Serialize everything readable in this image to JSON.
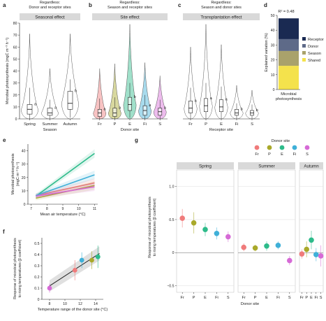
{
  "colors": {
    "ink": "#222222",
    "grid": "#dddddd",
    "strip": "#d9d9d9",
    "fr": "#f07b7b",
    "p": "#a9a92a",
    "e": "#2dbb8a",
    "fi": "#3fb0d8",
    "s": "#d66ad6",
    "receptor": "#1a2a52",
    "donor": "#5e6a88",
    "season": "#a9a26b",
    "shared": "#f4e24c"
  },
  "chart_data": [
    {
      "panel": "a",
      "type": "box",
      "top_label_1": "Regardless:",
      "top_label_2": "Donor and receptor sites",
      "strip": "Seasonal effect",
      "ylabel": "Microbial photosynthesis (mgC m⁻³ h⁻¹)",
      "xlabel": "Season",
      "ylim": [
        0,
        80
      ],
      "yticks": [
        0,
        10,
        20,
        30,
        40,
        50,
        60,
        70,
        80
      ],
      "categories": [
        "Spring",
        "Summer",
        "Autumn"
      ],
      "boxes": [
        {
          "q1": 4,
          "median": 8,
          "q3": 12,
          "wlo": 0,
          "whi": 26,
          "max": 71
        },
        {
          "q1": 3,
          "median": 5,
          "q3": 9,
          "wlo": 0,
          "whi": 16,
          "max": 42
        },
        {
          "q1": 8,
          "median": 13,
          "q3": 23,
          "wlo": 1,
          "whi": 33,
          "max": 71
        }
      ],
      "letters": [
        "a",
        "a",
        "b"
      ]
    },
    {
      "panel": "b",
      "type": "box",
      "top_label_1": "Regardless:",
      "top_label_2": "Season and receptor sites",
      "strip": "Site effect",
      "xlabel": "Donor site",
      "ylim": [
        0,
        80
      ],
      "categories": [
        "Fr",
        "P",
        "E",
        "Fi",
        "S"
      ],
      "boxes": [
        {
          "q1": 2,
          "median": 5,
          "q3": 8,
          "wlo": 0,
          "whi": 17,
          "max": 42
        },
        {
          "q1": 2,
          "median": 5,
          "q3": 9,
          "wlo": 0,
          "whi": 18,
          "max": 46
        },
        {
          "q1": 7,
          "median": 12,
          "q3": 18,
          "wlo": 1,
          "whi": 30,
          "max": 79
        },
        {
          "q1": 3,
          "median": 7,
          "q3": 11,
          "wlo": 0,
          "whi": 20,
          "max": 47
        },
        {
          "q1": 3,
          "median": 6,
          "q3": 9,
          "wlo": 0,
          "whi": 16,
          "max": 36
        }
      ],
      "letters": [
        "a",
        "a",
        "b",
        "a",
        "a"
      ]
    },
    {
      "panel": "c",
      "type": "box",
      "top_label_1": "Regardless:",
      "top_label_2": "Season and donor sites",
      "strip": "Transplantation effect",
      "xlabel": "Receptor site",
      "ylim": [
        0,
        80
      ],
      "categories": [
        "Fr",
        "P",
        "E",
        "Fi",
        "S"
      ],
      "boxes": [
        {
          "q1": 5,
          "median": 9,
          "q3": 15,
          "wlo": 0,
          "whi": 26,
          "max": 60
        },
        {
          "q1": 6,
          "median": 11,
          "q3": 17,
          "wlo": 0,
          "whi": 30,
          "max": 79
        },
        {
          "q1": 6,
          "median": 10,
          "q3": 16,
          "wlo": 0,
          "whi": 27,
          "max": 62
        },
        {
          "q1": 3,
          "median": 5,
          "q3": 8,
          "wlo": 0,
          "whi": 13,
          "max": 28
        },
        {
          "q1": 3,
          "median": 5,
          "q3": 7,
          "wlo": 0,
          "whi": 12,
          "max": 24
        }
      ],
      "letters": [
        "a",
        "a",
        "a",
        "b",
        "b"
      ]
    },
    {
      "panel": "d",
      "type": "bar",
      "stacked": true,
      "annotation": "R² = 0.48",
      "ylabel": "Explained variation (%)",
      "xlabel": "Microbial photosynthesis",
      "ylim": [
        0,
        50
      ],
      "yticks": [
        0,
        10,
        20,
        30,
        40,
        50
      ],
      "series": [
        {
          "name": "Shared",
          "values": [
            16
          ]
        },
        {
          "name": "Season",
          "values": [
            10
          ]
        },
        {
          "name": "Donor",
          "values": [
            8
          ]
        },
        {
          "name": "Receptor",
          "values": [
            14
          ]
        }
      ],
      "legend_order": [
        "Receptor",
        "Donor",
        "Season",
        "Shared"
      ]
    },
    {
      "panel": "e",
      "type": "line",
      "ylabel": "Microbial photosynthesis (mgC m⁻³ h⁻¹)",
      "xlabel": "Mean air temperature (°C)",
      "xlim": [
        6.8,
        11.2
      ],
      "xticks": [
        7,
        8,
        9,
        10,
        11
      ],
      "ylim": [
        0,
        45
      ],
      "yticks": [
        0,
        10,
        20,
        30,
        40
      ],
      "series": [
        {
          "key": "fr",
          "x": [
            7.3,
            11
          ],
          "y": [
            6.5,
            16
          ]
        },
        {
          "key": "p",
          "x": [
            7.3,
            11
          ],
          "y": [
            4.5,
            14
          ]
        },
        {
          "key": "e",
          "x": [
            7.3,
            11
          ],
          "y": [
            6,
            38
          ]
        },
        {
          "key": "fi",
          "x": [
            7.3,
            11
          ],
          "y": [
            6.5,
            22
          ]
        },
        {
          "key": "s",
          "x": [
            7.3,
            11
          ],
          "y": [
            6,
            13
          ]
        }
      ]
    },
    {
      "panel": "f",
      "type": "scatter",
      "ylabel": "Response of microbial photosynthesis to rising temperatures (β coefficient)",
      "xlabel": "Temperature range of the donor site (°C)",
      "xlim": [
        7,
        15
      ],
      "xticks": [
        8,
        10,
        12,
        14
      ],
      "ylim": [
        0,
        0.55
      ],
      "yticks": [
        0,
        0.1,
        0.2,
        0.3,
        0.4,
        0.5
      ],
      "points": [
        {
          "key": "s",
          "x": 8.0,
          "y": 0.1,
          "err": 0.04
        },
        {
          "key": "fr",
          "x": 11.3,
          "y": 0.26,
          "err": 0.09
        },
        {
          "key": "fi",
          "x": 12.2,
          "y": 0.35,
          "err": 0.07
        },
        {
          "key": "p",
          "x": 13.5,
          "y": 0.35,
          "err": 0.08
        },
        {
          "key": "e",
          "x": 14.3,
          "y": 0.38,
          "err": 0.1
        }
      ],
      "fit": {
        "x": [
          8,
          14.5
        ],
        "y": [
          0.12,
          0.41
        ]
      }
    },
    {
      "panel": "g",
      "type": "scatter",
      "legend_title": "Donor site",
      "legend": [
        {
          "key": "fr",
          "label": "Fr"
        },
        {
          "key": "p",
          "label": "P"
        },
        {
          "key": "e",
          "label": "E"
        },
        {
          "key": "fi",
          "label": "Fi"
        },
        {
          "key": "s",
          "label": "S"
        }
      ],
      "ylabel": "Response of microbial photosynthesis to rising temperatures (β coefficient)",
      "xlabel": "Donor site",
      "ylim": [
        -0.6,
        1.25
      ],
      "yticks": [
        -0.5,
        0,
        0.5,
        1.0
      ],
      "ytick_labels": [
        "−0.5",
        "0",
        "0.5",
        "1.0"
      ],
      "categories": [
        "Fr",
        "P",
        "E",
        "Fi",
        "S"
      ],
      "facets": [
        {
          "title": "Spring",
          "means": [
            0.52,
            0.45,
            0.35,
            0.29,
            0.24
          ],
          "err": [
            0.14,
            0.16,
            0.1,
            0.09,
            0.08
          ]
        },
        {
          "title": "Summer",
          "means": [
            0.08,
            0.07,
            0.1,
            0.11,
            -0.12
          ],
          "err": [
            0.06,
            0.05,
            0.07,
            0.06,
            0.07
          ]
        },
        {
          "title": "Autumn",
          "means": [
            -0.02,
            0.05,
            0.19,
            -0.03,
            -0.05
          ],
          "err": [
            0.07,
            0.12,
            0.14,
            0.1,
            0.16
          ]
        }
      ]
    }
  ]
}
